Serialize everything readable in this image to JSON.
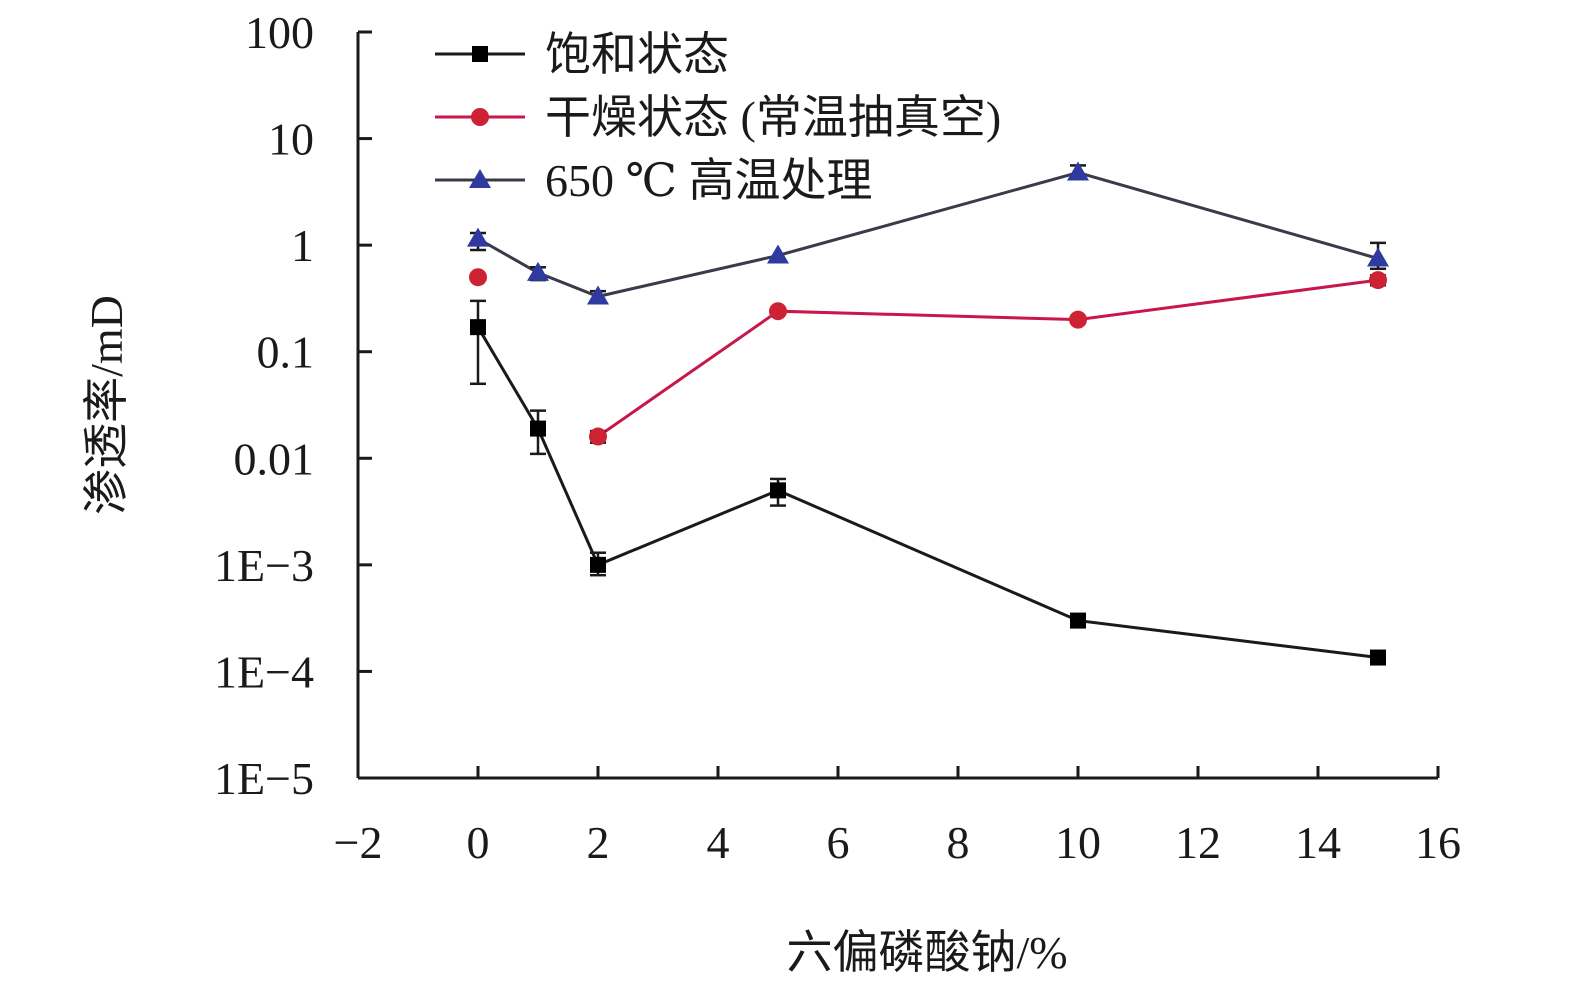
{
  "chart_data": {
    "type": "line",
    "title": "",
    "xlabel": "六偏磷酸钠/%",
    "ylabel": "渗透率/mD",
    "xlim": [
      -2,
      16
    ],
    "x_ticks": [
      -2,
      0,
      2,
      4,
      6,
      8,
      10,
      12,
      14,
      16
    ],
    "x_tick_labels": [
      "−2",
      "0",
      "2",
      "4",
      "6",
      "8",
      "10",
      "12",
      "14",
      "16"
    ],
    "y_scale": "log",
    "ylim": [
      1e-05,
      100
    ],
    "y_ticks": [
      1e-05,
      0.0001,
      0.001,
      0.01,
      0.1,
      1,
      10,
      100
    ],
    "y_tick_labels": [
      "1E−5",
      "1E−4",
      "1E−3",
      "0.01",
      "0.1",
      "1",
      "10",
      "100"
    ],
    "grid": false,
    "legend_position": "top-left",
    "series": [
      {
        "name": "饱和状态",
        "color": "#000000",
        "line_color": "#1a1a1a",
        "marker": "square",
        "x": [
          0,
          1,
          2,
          5,
          10,
          15
        ],
        "y": [
          0.17,
          0.019,
          0.001,
          0.005,
          0.0003,
          0.000135
        ],
        "err_low": [
          0.05,
          0.011,
          0.0008,
          0.0036,
          null,
          null
        ],
        "err_high": [
          0.3,
          0.028,
          0.0013,
          0.0064,
          null,
          null
        ]
      },
      {
        "name": "干燥状态 (常温抽真空)",
        "color": "#cc2233",
        "line_color": "#c8174a",
        "marker": "circle",
        "x": [
          0,
          2,
          5,
          10,
          15
        ],
        "y": [
          0.5,
          0.016,
          0.24,
          0.2,
          0.47
        ],
        "segments": [
          [
            1,
            2,
            3,
            4
          ]
        ],
        "err_low": [
          null,
          0.014,
          null,
          null,
          0.42
        ],
        "err_high": [
          null,
          0.018,
          null,
          null,
          0.52
        ]
      },
      {
        "name": "650 ℃ 高温处理",
        "color": "#2f3aa0",
        "line_color": "#3a3a4a",
        "marker": "triangle",
        "x": [
          0,
          1,
          2,
          5,
          10,
          15
        ],
        "y": [
          1.15,
          0.55,
          0.33,
          0.8,
          4.8,
          0.75
        ],
        "err_low": [
          0.9,
          0.47,
          0.3,
          null,
          4.2,
          0.6
        ],
        "err_high": [
          1.3,
          0.62,
          0.37,
          null,
          5.6,
          1.05
        ]
      }
    ]
  }
}
